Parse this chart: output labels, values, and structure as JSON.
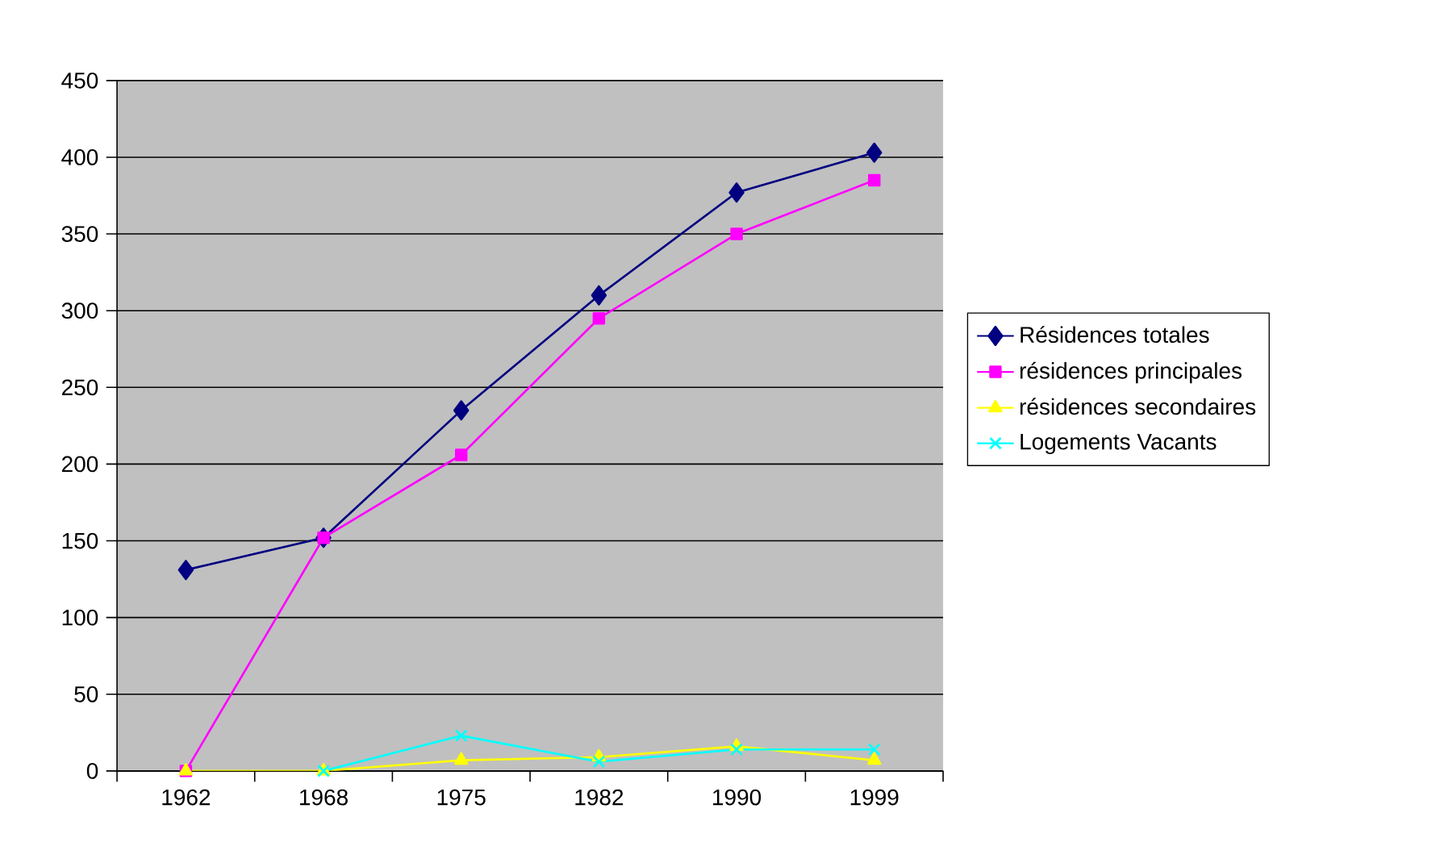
{
  "chart_data": {
    "type": "line",
    "categories": [
      "1962",
      "1968",
      "1975",
      "1982",
      "1990",
      "1999"
    ],
    "series": [
      {
        "name": "Résidences totales",
        "color": "#000080",
        "marker": "diamond",
        "values": [
          131,
          152,
          235,
          310,
          377,
          403
        ]
      },
      {
        "name": "résidences principales",
        "color": "#ff00ff",
        "marker": "square",
        "values": [
          0,
          152,
          206,
          295,
          350,
          385
        ]
      },
      {
        "name": "résidences secondaires",
        "color": "#ffff00",
        "marker": "triangle",
        "values": [
          0,
          0,
          7,
          9,
          16,
          7
        ]
      },
      {
        "name": "Logements Vacants",
        "color": "#00ffff",
        "marker": "cross",
        "values": [
          null,
          0,
          23,
          6,
          14,
          14
        ]
      }
    ],
    "ylim": [
      0,
      450
    ],
    "yticks": [
      0,
      50,
      100,
      150,
      200,
      250,
      300,
      350,
      400,
      450
    ],
    "grid": "y",
    "legend": "right"
  }
}
